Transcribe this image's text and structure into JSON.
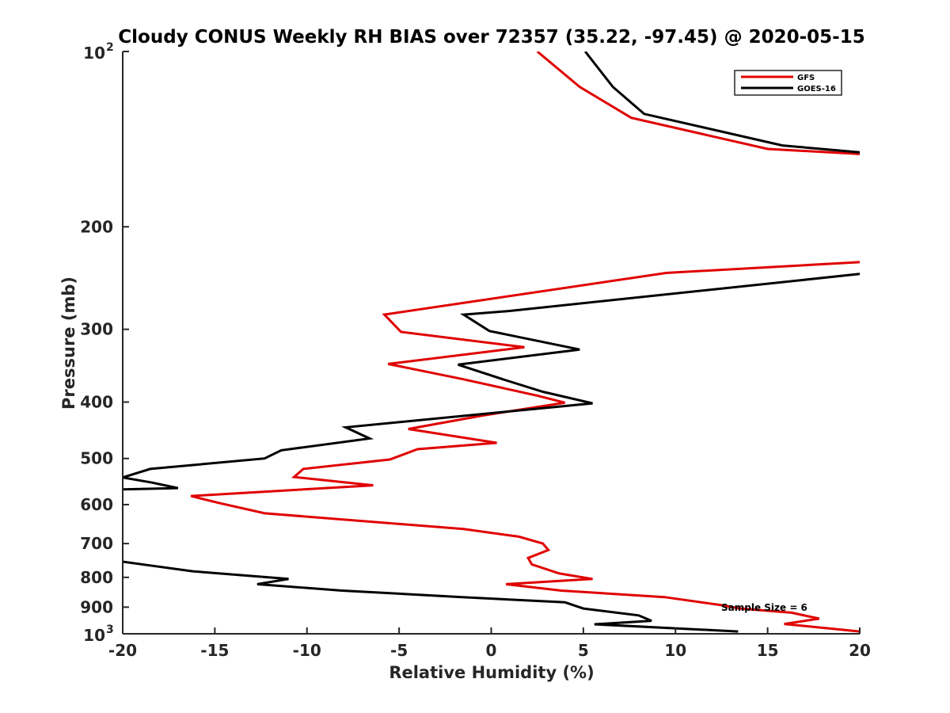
{
  "chart_data": {
    "type": "line",
    "title": "Cloudy CONUS Weekly RH BIAS over 72357 (35.22, -97.45) @ 2020-05-15",
    "xlabel": "Relative Humidity (%)",
    "ylabel": "Pressure (mb)",
    "xlim": [
      -20,
      20
    ],
    "ylim": [
      100,
      1000
    ],
    "yscale": "log",
    "y_reversed": true,
    "grid": false,
    "legend_position": "top-right",
    "x_ticks": [
      -20,
      -15,
      -10,
      -5,
      0,
      5,
      10,
      15,
      20
    ],
    "x_tick_labels": [
      "-20",
      "-15",
      "-10",
      "-5",
      "0",
      "5",
      "10",
      "15",
      "20"
    ],
    "y_ticks": [
      100,
      200,
      300,
      400,
      500,
      600,
      700,
      800,
      900,
      1000
    ],
    "y_tick_labels": [
      {
        "base": "10",
        "exp": "2"
      },
      {
        "base": "200",
        "exp": ""
      },
      {
        "base": "300",
        "exp": ""
      },
      {
        "base": "400",
        "exp": ""
      },
      {
        "base": "500",
        "exp": ""
      },
      {
        "base": "600",
        "exp": ""
      },
      {
        "base": "700",
        "exp": ""
      },
      {
        "base": "800",
        "exp": ""
      },
      {
        "base": "900",
        "exp": ""
      },
      {
        "base": "10",
        "exp": "3"
      }
    ],
    "annotation": "Sample Size = 6",
    "series": [
      {
        "name": "GFS",
        "color": "#e00000",
        "points": [
          [
            2.5,
            100
          ],
          [
            4.8,
            115
          ],
          [
            7.6,
            130
          ],
          [
            15.0,
            147
          ],
          [
            20.0,
            150
          ],
          [
            null,
            null
          ],
          [
            20.0,
            230
          ],
          [
            9.5,
            240
          ],
          [
            -5.8,
            283
          ],
          [
            -4.9,
            303
          ],
          [
            1.8,
            322
          ],
          [
            -5.6,
            344
          ],
          [
            -1.6,
            365
          ],
          [
            2.5,
            390
          ],
          [
            4.0,
            401
          ],
          [
            -0.5,
            422
          ],
          [
            -4.5,
            445
          ],
          [
            0.3,
            470
          ],
          [
            -4.0,
            482
          ],
          [
            -5.5,
            502
          ],
          [
            -10.2,
            521
          ],
          [
            -10.7,
            538
          ],
          [
            -6.4,
            556
          ],
          [
            -16.3,
            580
          ],
          [
            -14.7,
            597
          ],
          [
            -12.3,
            621
          ],
          [
            -1.5,
            661
          ],
          [
            1.5,
            681
          ],
          [
            2.8,
            700
          ],
          [
            3.1,
            718
          ],
          [
            2.0,
            741
          ],
          [
            2.2,
            760
          ],
          [
            3.7,
            788
          ],
          [
            5.5,
            805
          ],
          [
            0.8,
            822
          ],
          [
            3.8,
            843
          ],
          [
            9.4,
            865
          ],
          [
            12.5,
            893
          ],
          [
            13.5,
            905
          ],
          [
            16.3,
            920
          ],
          [
            17.8,
            942
          ],
          [
            15.9,
            962
          ],
          [
            20.0,
            991
          ]
        ]
      },
      {
        "name": "GOES-16",
        "color": "#000000",
        "points": [
          [
            5.1,
            100
          ],
          [
            6.6,
            115
          ],
          [
            8.3,
            128
          ],
          [
            15.8,
            145
          ],
          [
            20.0,
            149
          ],
          [
            null,
            null
          ],
          [
            20.0,
            241
          ],
          [
            1.0,
            279
          ],
          [
            -1.5,
            283
          ],
          [
            -0.1,
            302
          ],
          [
            4.8,
            325
          ],
          [
            -1.8,
            345
          ],
          [
            0.8,
            367
          ],
          [
            2.8,
            384
          ],
          [
            5.5,
            402
          ],
          [
            -7.9,
            442
          ],
          [
            -6.6,
            462
          ],
          [
            -11.4,
            484
          ],
          [
            -12.3,
            500
          ],
          [
            -18.5,
            521
          ],
          [
            -20.0,
            539
          ],
          [
            -18.4,
            550
          ],
          [
            -17.0,
            562
          ],
          [
            -20.0,
            565
          ],
          [
            null,
            null
          ],
          [
            -20.0,
            752
          ],
          [
            -18.7,
            762
          ],
          [
            -16.2,
            781
          ],
          [
            -11.0,
            805
          ],
          [
            -12.7,
            822
          ],
          [
            -8.1,
            843
          ],
          [
            -1.6,
            865
          ],
          [
            4.0,
            883
          ],
          [
            5.0,
            905
          ],
          [
            8.0,
            930
          ],
          [
            8.7,
            950
          ],
          [
            5.6,
            963
          ],
          [
            13.4,
            991
          ]
        ]
      }
    ]
  }
}
